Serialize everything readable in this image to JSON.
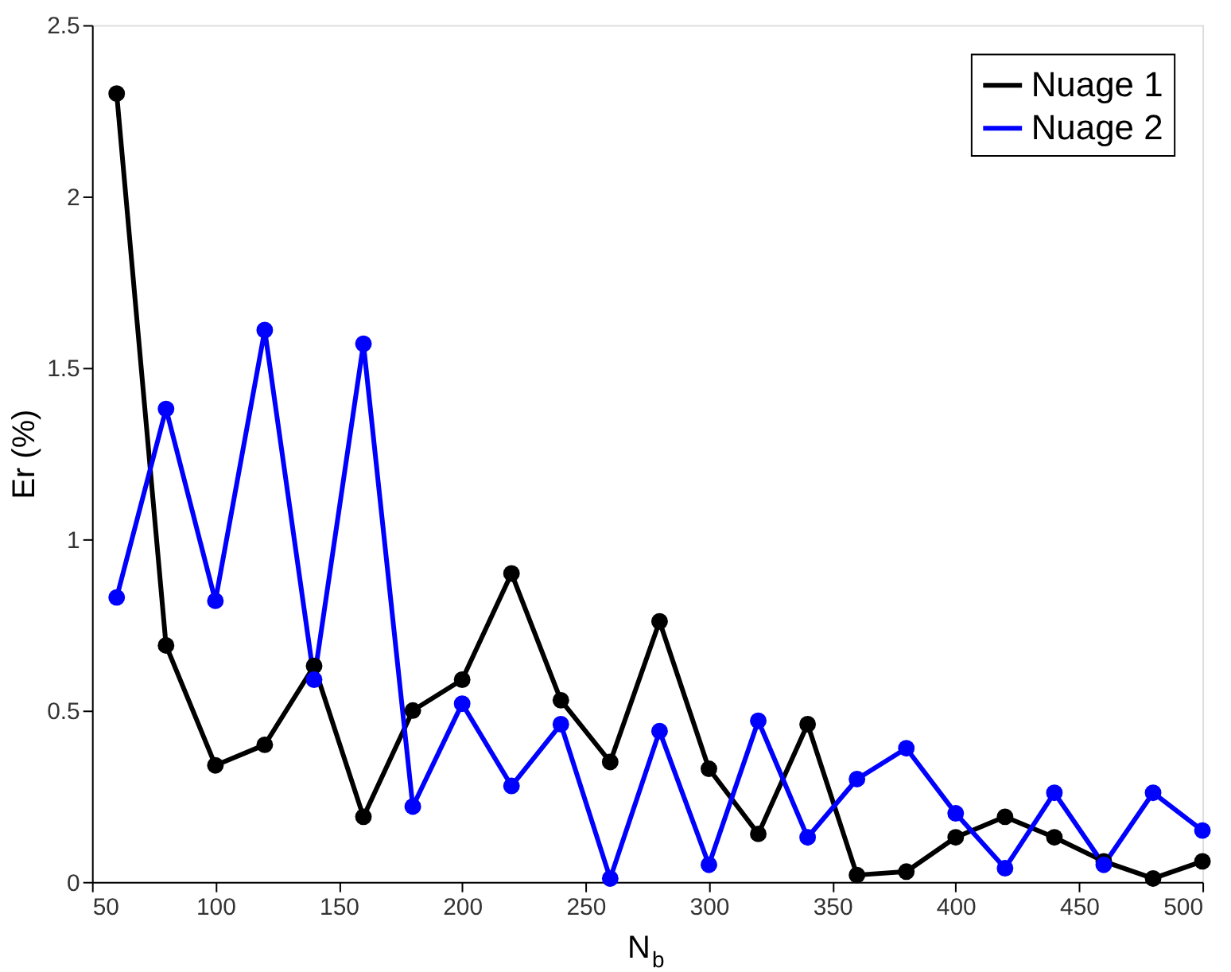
{
  "chart_data": {
    "type": "line",
    "xlabel": "N$_{b}$",
    "ylabel": "Er (%)",
    "x": [
      60,
      80,
      100,
      120,
      140,
      160,
      180,
      200,
      220,
      240,
      260,
      280,
      300,
      320,
      340,
      360,
      380,
      400,
      420,
      440,
      460,
      480,
      500
    ],
    "series": [
      {
        "name": "Nuage 1",
        "color": "#000000",
        "values": [
          2.3,
          0.69,
          0.34,
          0.4,
          0.63,
          0.19,
          0.5,
          0.59,
          0.9,
          0.53,
          0.35,
          0.76,
          0.33,
          0.14,
          0.46,
          0.02,
          0.03,
          0.13,
          0.19,
          0.13,
          0.06,
          0.01,
          0.06
        ]
      },
      {
        "name": "Nuage 2",
        "color": "#0000ff",
        "values": [
          0.83,
          1.38,
          0.82,
          1.61,
          0.59,
          1.57,
          0.22,
          0.52,
          0.28,
          0.46,
          0.01,
          0.44,
          0.05,
          0.47,
          0.13,
          0.3,
          0.39,
          0.2,
          0.04,
          0.26,
          0.05,
          0.26,
          0.15
        ]
      }
    ],
    "xlim": [
      50,
      500
    ],
    "xticks": [
      50,
      100,
      150,
      200,
      250,
      300,
      350,
      400,
      450,
      500
    ],
    "ylim": [
      0,
      2.5
    ],
    "yticks": [
      0,
      0.5,
      1,
      1.5,
      2,
      2.5
    ],
    "grid": false,
    "legend": "top right",
    "marker": "circle",
    "line_style": "solid"
  }
}
